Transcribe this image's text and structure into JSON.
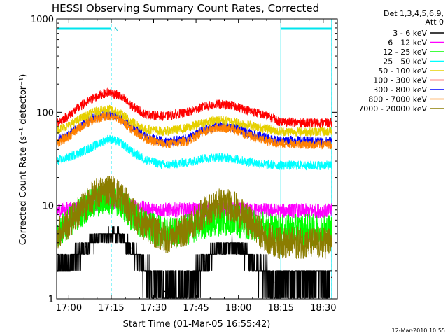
{
  "chart_data": {
    "type": "line",
    "title": "HESSI Observing Summary Count Rates, Corrected",
    "xlabel": "Start Time (01-Mar-05 16:55:42)",
    "ylabel": "Corrected Count Rate (s⁻¹ detector⁻¹)",
    "x_unit": "minutes after 16:55:42",
    "xlim": [
      "16:55:42",
      "18:35:00"
    ],
    "ylim": [
      1,
      1000
    ],
    "yscale": "log",
    "grid": false,
    "legend_position": "right",
    "x_ticks": [
      "17:00",
      "17:15",
      "17:30",
      "17:45",
      "18:00",
      "18:15",
      "18:30"
    ],
    "y_ticks": [
      "1",
      "10",
      "100",
      "1000"
    ],
    "legend_header": [
      "Det 1,3,4,5,6,9,",
      "Att 0"
    ],
    "footer_date": "12-Mar-2010 10:55",
    "flag_label": "N",
    "flag_bars": [
      {
        "start": "16:55:42",
        "end": "17:15:00"
      },
      {
        "start": "18:15:00",
        "end": "18:33:00"
      }
    ],
    "markers": [
      "17:15:00",
      "18:15:00",
      "18:33:00"
    ],
    "series": [
      {
        "name": "3 - 6 keV",
        "color": "#000000",
        "x": [
          "16:56",
          "17:01",
          "17:06",
          "17:10",
          "17:14",
          "17:18",
          "17:22",
          "17:27",
          "17:34",
          "17:42",
          "17:48",
          "17:53",
          "17:58",
          "18:02",
          "18:08",
          "18:13",
          "18:14",
          "18:20",
          "18:26",
          "18:33"
        ],
        "y": [
          2.0,
          2.5,
          3.6,
          4.5,
          5.0,
          4.8,
          3.5,
          2.0,
          1.2,
          1.3,
          2.5,
          3.5,
          3.8,
          3.2,
          2.0,
          1.5,
          1.7,
          1.7,
          1.7,
          1.7
        ]
      },
      {
        "name": "6 - 12 keV",
        "color": "#ff00ff",
        "x": [
          "16:56",
          "17:05",
          "17:10",
          "17:15",
          "17:20",
          "17:30",
          "17:45",
          "17:55",
          "18:05",
          "18:15",
          "18:25",
          "18:33"
        ],
        "y": [
          9.0,
          9.5,
          10.5,
          11.0,
          10.0,
          9.0,
          9.0,
          9.0,
          9.0,
          8.8,
          8.8,
          8.8
        ]
      },
      {
        "name": "12 - 25 keV",
        "color": "#00ff00",
        "x": [
          "16:56",
          "17:00",
          "17:05",
          "17:10",
          "17:14",
          "17:18",
          "17:22",
          "17:27",
          "17:34",
          "17:42",
          "17:48",
          "17:53",
          "17:58",
          "18:02",
          "18:08",
          "18:13",
          "18:14",
          "18:20",
          "18:26",
          "18:33"
        ],
        "y": [
          5.0,
          6.5,
          9.0,
          11.0,
          12.0,
          11.0,
          8.0,
          6.0,
          5.0,
          5.5,
          6.5,
          7.0,
          7.0,
          6.5,
          6.0,
          5.5,
          5.5,
          5.5,
          5.5,
          5.5
        ]
      },
      {
        "name": "25 - 50 keV",
        "color": "#00ffff",
        "x": [
          "16:56",
          "17:00",
          "17:05",
          "17:10",
          "17:14",
          "17:18",
          "17:22",
          "17:27",
          "17:34",
          "17:42",
          "17:48",
          "17:53",
          "17:58",
          "18:02",
          "18:08",
          "18:13",
          "18:14",
          "18:20",
          "18:26",
          "18:33"
        ],
        "y": [
          30,
          33,
          38,
          45,
          52,
          48,
          38,
          31,
          27,
          29,
          32,
          33,
          32,
          30,
          28,
          27,
          27,
          27,
          27,
          27
        ]
      },
      {
        "name": "50 - 100 keV",
        "color": "#e6d000",
        "x": [
          "16:56",
          "17:00",
          "17:05",
          "17:10",
          "17:14",
          "17:18",
          "17:22",
          "17:27",
          "17:34",
          "17:42",
          "17:48",
          "17:53",
          "17:58",
          "18:02",
          "18:08",
          "18:13",
          "18:14",
          "18:20",
          "18:26",
          "18:33"
        ],
        "y": [
          65,
          72,
          88,
          103,
          108,
          98,
          80,
          66,
          62,
          68,
          78,
          83,
          80,
          75,
          68,
          64,
          62,
          62,
          62,
          62
        ]
      },
      {
        "name": "100 - 300 keV",
        "color": "#ff0000",
        "x": [
          "16:56",
          "17:00",
          "17:05",
          "17:10",
          "17:14",
          "17:18",
          "17:22",
          "17:27",
          "17:34",
          "17:42",
          "17:48",
          "17:53",
          "17:58",
          "18:02",
          "18:08",
          "18:13",
          "18:14",
          "18:20",
          "18:26",
          "18:33"
        ],
        "y": [
          78,
          92,
          120,
          148,
          165,
          150,
          118,
          95,
          90,
          100,
          115,
          122,
          118,
          108,
          95,
          85,
          80,
          78,
          77,
          77
        ]
      },
      {
        "name": "300 - 800 keV",
        "color": "#0000ff",
        "x": [
          "16:56",
          "17:00",
          "17:05",
          "17:10",
          "17:14",
          "17:18",
          "17:22",
          "17:27",
          "17:34",
          "17:42",
          "17:48",
          "17:53",
          "17:58",
          "18:02",
          "18:08",
          "18:13",
          "18:14",
          "18:20",
          "18:26",
          "18:33"
        ],
        "y": [
          50,
          58,
          75,
          90,
          95,
          88,
          70,
          55,
          48,
          52,
          65,
          72,
          70,
          62,
          55,
          50,
          50,
          50,
          49,
          49
        ]
      },
      {
        "name": "800 - 7000 keV",
        "color": "#ff8000",
        "x": [
          "16:56",
          "17:00",
          "17:05",
          "17:10",
          "17:14",
          "17:18",
          "17:22",
          "17:27",
          "17:34",
          "17:42",
          "17:48",
          "17:53",
          "17:58",
          "18:02",
          "18:08",
          "18:13",
          "18:14",
          "18:20",
          "18:26",
          "18:33"
        ],
        "y": [
          47,
          55,
          72,
          86,
          92,
          84,
          67,
          52,
          45,
          49,
          62,
          69,
          66,
          58,
          51,
          47,
          46,
          46,
          45,
          45
        ]
      },
      {
        "name": "7000 - 20000 keV",
        "color": "#8b7d00",
        "x": [
          "16:56",
          "17:00",
          "17:05",
          "17:10",
          "17:14",
          "17:18",
          "17:22",
          "17:27",
          "17:34",
          "17:42",
          "17:48",
          "17:53",
          "17:58",
          "18:02",
          "18:08",
          "18:13",
          "18:14",
          "18:20",
          "18:26",
          "18:33"
        ],
        "y": [
          5.0,
          6.5,
          9.5,
          13.5,
          15.0,
          13.0,
          8.5,
          6.0,
          4.5,
          5.5,
          8.5,
          10.5,
          10.0,
          7.5,
          5.0,
          4.0,
          4.0,
          4.0,
          4.0,
          4.0
        ]
      }
    ]
  }
}
